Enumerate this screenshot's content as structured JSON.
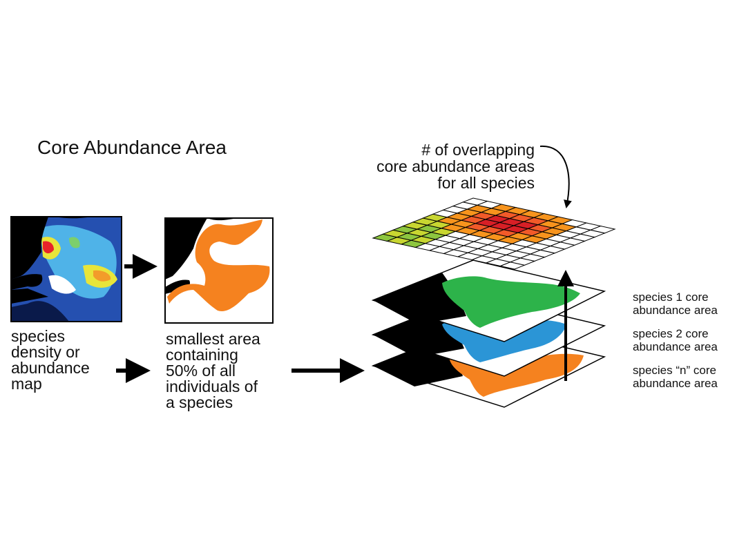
{
  "title": "Core Abundance Area",
  "panels": {
    "density_caption": "species\ndensity or\nabundance\nmap",
    "core_caption": "smallest area\ncontaining\n50% of all\nindividuals of\na species"
  },
  "stack": {
    "top_label": "# of overlapping\ncore abundance areas\nfor all species",
    "layers": [
      {
        "label": "species 1 core\nabundance area",
        "color": "#2db34a"
      },
      {
        "label": "species 2 core\nabundance area",
        "color": "#2b95d6"
      },
      {
        "label": "species “n” core\nabundance area",
        "color": "#f5821f"
      }
    ]
  },
  "colors": {
    "core_area": "#f5821f",
    "land": "#000000",
    "density_low": "#1e3f9c",
    "density_mid": "#4fb3e8",
    "density_high": "#e8232a",
    "grid_heat": [
      "#8dc63f",
      "#c8d631",
      "#f7941d",
      "#f15a29",
      "#d71f26"
    ]
  }
}
